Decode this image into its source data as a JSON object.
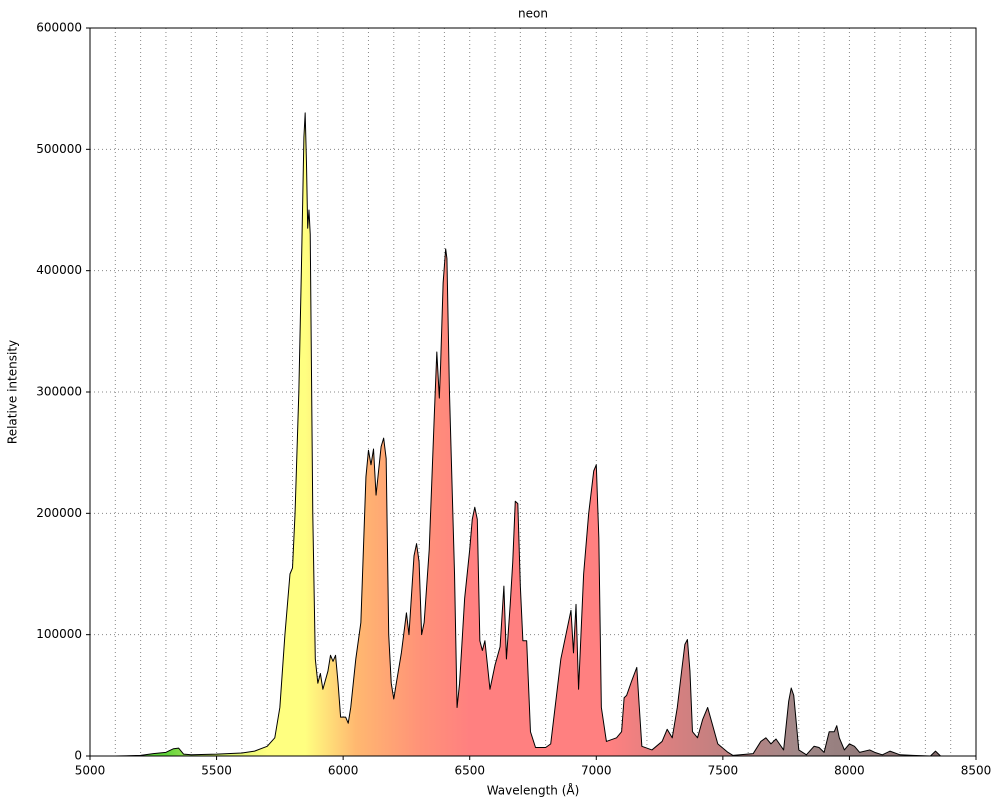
{
  "chart_data": {
    "type": "area",
    "title": "neon",
    "x_label": "Wavelength (Å)",
    "y_label": "Relative intensity",
    "x": [
      5100,
      5200,
      5250,
      5300,
      5330,
      5350,
      5370,
      5400,
      5500,
      5600,
      5650,
      5700,
      5730,
      5750,
      5770,
      5790,
      5800,
      5810,
      5825,
      5835,
      5845,
      5850,
      5855,
      5860,
      5865,
      5870,
      5880,
      5890,
      5900,
      5910,
      5920,
      5940,
      5950,
      5960,
      5970,
      5980,
      5990,
      6010,
      6020,
      6030,
      6050,
      6070,
      6090,
      6100,
      6110,
      6120,
      6130,
      6150,
      6160,
      6170,
      6180,
      6190,
      6200,
      6210,
      6230,
      6250,
      6260,
      6280,
      6290,
      6300,
      6310,
      6320,
      6340,
      6360,
      6370,
      6380,
      6385,
      6395,
      6405,
      6410,
      6420,
      6440,
      6450,
      6460,
      6480,
      6500,
      6510,
      6520,
      6530,
      6540,
      6550,
      6560,
      6580,
      6600,
      6620,
      6635,
      6645,
      6660,
      6670,
      6680,
      6690,
      6700,
      6710,
      6725,
      6740,
      6760,
      6800,
      6820,
      6840,
      6860,
      6880,
      6900,
      6910,
      6920,
      6930,
      6950,
      6970,
      6990,
      7000,
      7010,
      7020,
      7040,
      7080,
      7100,
      7110,
      7120,
      7140,
      7160,
      7170,
      7180,
      7220,
      7260,
      7280,
      7300,
      7320,
      7340,
      7350,
      7360,
      7370,
      7380,
      7400,
      7420,
      7440,
      7460,
      7480,
      7520,
      7540,
      7620,
      7650,
      7670,
      7690,
      7710,
      7740,
      7760,
      7770,
      7780,
      7800,
      7830,
      7860,
      7880,
      7900,
      7920,
      7940,
      7950,
      7960,
      7980,
      8000,
      8020,
      8040,
      8080,
      8100,
      8130,
      8160,
      8200,
      8250,
      8320,
      8340,
      8360
    ],
    "values": [
      0,
      500,
      2000,
      3000,
      6000,
      6500,
      1500,
      1000,
      1500,
      2500,
      4000,
      8000,
      15000,
      40000,
      100000,
      150000,
      155000,
      200000,
      300000,
      400000,
      510000,
      530000,
      490000,
      435000,
      450000,
      430000,
      200000,
      80000,
      60000,
      68000,
      55000,
      70000,
      83000,
      78000,
      83000,
      60000,
      32000,
      32000,
      27000,
      40000,
      80000,
      110000,
      230000,
      252000,
      240000,
      253000,
      215000,
      255000,
      262000,
      245000,
      100000,
      60000,
      47000,
      60000,
      85000,
      118000,
      100000,
      165000,
      175000,
      160000,
      100000,
      110000,
      170000,
      280000,
      333000,
      295000,
      322000,
      390000,
      418000,
      410000,
      300000,
      150000,
      40000,
      60000,
      130000,
      170000,
      195000,
      205000,
      195000,
      95000,
      87000,
      95000,
      55000,
      75000,
      90000,
      140000,
      80000,
      125000,
      160000,
      210000,
      208000,
      140000,
      95000,
      95000,
      20000,
      7000,
      7000,
      10000,
      45000,
      80000,
      100000,
      120000,
      85000,
      125000,
      55000,
      150000,
      200000,
      235000,
      240000,
      180000,
      40000,
      12000,
      15000,
      20000,
      48000,
      50000,
      62000,
      73000,
      40000,
      8000,
      5000,
      12000,
      22000,
      15000,
      40000,
      75000,
      92000,
      96000,
      70000,
      20000,
      15000,
      30000,
      40000,
      25000,
      10000,
      3000,
      500,
      2000,
      12000,
      15000,
      10000,
      14000,
      5000,
      45000,
      56000,
      50000,
      5000,
      1000,
      8000,
      7000,
      3000,
      20000,
      20000,
      25000,
      15000,
      5000,
      10000,
      8000,
      3000,
      5000,
      3000,
      1000,
      4000,
      1000,
      500,
      0,
      4000,
      0
    ],
    "xlim": [
      5000,
      8500
    ],
    "xticks": [
      5000,
      5500,
      6000,
      6500,
      7000,
      7500,
      8000,
      8500
    ],
    "xminorticks": [
      5100,
      5200,
      5300,
      5400,
      5600,
      5700,
      5800,
      5900,
      6100,
      6200,
      6300,
      6400,
      6600,
      6700,
      6800,
      6900,
      7100,
      7200,
      7300,
      7400,
      7600,
      7700,
      7800,
      7900,
      8100,
      8200,
      8300,
      8400
    ],
    "ylim": [
      0,
      600000
    ],
    "yticks": [
      0,
      100000,
      200000,
      300000,
      400000,
      500000,
      600000
    ],
    "grid": true,
    "line_color": "#000000",
    "fill_stops": [
      {
        "x": 5300,
        "color": "#5fd33a"
      },
      {
        "x": 5450,
        "color": "#c0e860"
      },
      {
        "x": 5700,
        "color": "#ffff80"
      },
      {
        "x": 5850,
        "color": "#ffff80"
      },
      {
        "x": 6050,
        "color": "#ffb870"
      },
      {
        "x": 6300,
        "color": "#ff9378"
      },
      {
        "x": 6500,
        "color": "#ff8080"
      },
      {
        "x": 7050,
        "color": "#ff8080"
      },
      {
        "x": 7300,
        "color": "#d88080"
      },
      {
        "x": 7500,
        "color": "#c08080"
      },
      {
        "x": 7800,
        "color": "#a08888"
      },
      {
        "x": 8400,
        "color": "#806868"
      }
    ]
  }
}
